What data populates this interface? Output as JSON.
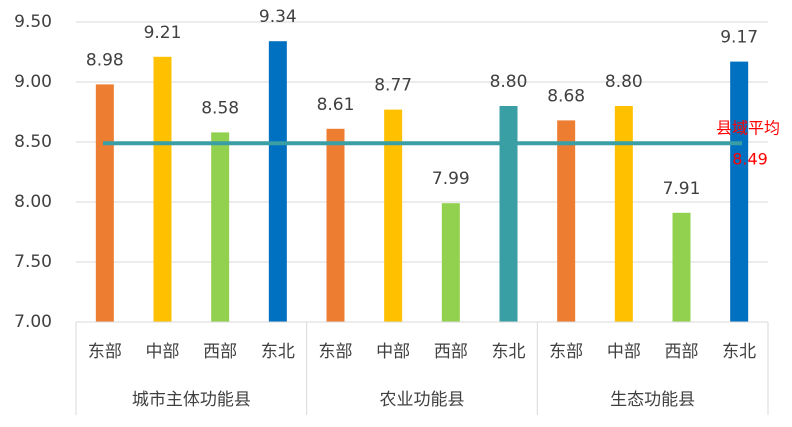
{
  "chart_data": {
    "type": "bar",
    "ylim": [
      7.0,
      9.5
    ],
    "yticks": [
      {
        "value": 7.0,
        "label": "7.00"
      },
      {
        "value": 7.5,
        "label": "7.50"
      },
      {
        "value": 8.0,
        "label": "8.00"
      },
      {
        "value": 8.5,
        "label": "8.50"
      },
      {
        "value": 9.0,
        "label": "9.00"
      },
      {
        "value": 9.5,
        "label": "9.50"
      }
    ],
    "grid": true,
    "groups": [
      {
        "name": "城市主体功能县",
        "categories": [
          "东部",
          "中部",
          "西部",
          "东北"
        ],
        "values": [
          8.98,
          9.21,
          8.58,
          9.34
        ],
        "value_labels": [
          "8.98",
          "9.21",
          "8.58",
          "9.34"
        ],
        "colors": [
          "#ED7D31",
          "#FFC000",
          "#92D050",
          "#0070C0"
        ]
      },
      {
        "name": "农业功能县",
        "categories": [
          "东部",
          "中部",
          "西部",
          "东北"
        ],
        "values": [
          8.61,
          8.77,
          7.99,
          8.8
        ],
        "value_labels": [
          "8.61",
          "8.77",
          "7.99",
          "8.80"
        ],
        "colors": [
          "#ED7D31",
          "#FFC000",
          "#92D050",
          "#3A9EA5"
        ]
      },
      {
        "name": "生态功能县",
        "categories": [
          "东部",
          "中部",
          "西部",
          "东北"
        ],
        "values": [
          8.68,
          8.8,
          7.91,
          9.17
        ],
        "value_labels": [
          "8.68",
          "8.80",
          "7.91",
          "9.17"
        ],
        "colors": [
          "#ED7D31",
          "#FFC000",
          "#92D050",
          "#0070C0"
        ]
      }
    ],
    "reference_line": {
      "label": "县域平均",
      "value": 8.49,
      "color": "#3A9EA5",
      "label_color": "#FF0000"
    }
  }
}
